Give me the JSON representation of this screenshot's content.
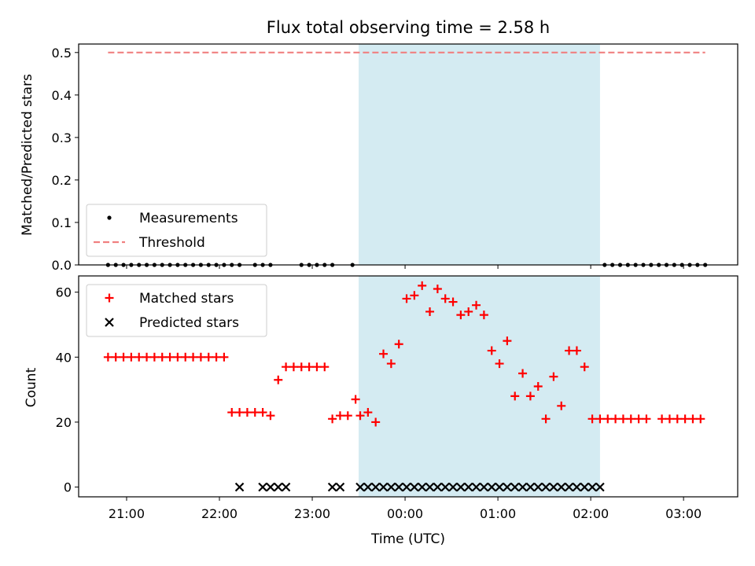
{
  "chart_data": {
    "type": "scatter",
    "title": "Flux total observing time = 2.58 h",
    "xlabel": "Time (UTC)",
    "x_ticks": [
      "21:00",
      "22:00",
      "23:00",
      "00:00",
      "01:00",
      "02:00",
      "03:00"
    ],
    "shaded_interval": {
      "start": "23:30",
      "end": "02:06",
      "color": "#add8e6"
    },
    "panels": [
      {
        "ylabel": "Matched/Predicted stars",
        "ylim": [
          0,
          0.52
        ],
        "y_ticks": [
          "0.0",
          "0.1",
          "0.2",
          "0.3",
          "0.4",
          "0.5"
        ],
        "legend_position": "lower left",
        "series": [
          {
            "name": "Measurements",
            "marker": "dot",
            "color": "#000000",
            "x": [
              "20:48",
              "20:53",
              "20:58",
              "21:03",
              "21:08",
              "21:13",
              "21:18",
              "21:23",
              "21:28",
              "21:33",
              "21:38",
              "21:43",
              "21:48",
              "21:53",
              "21:58",
              "22:03",
              "22:08",
              "22:13",
              "22:23",
              "22:28",
              "22:33",
              "22:53",
              "22:58",
              "23:03",
              "23:08",
              "23:13",
              "23:26",
              "02:09",
              "02:14",
              "02:19",
              "02:24",
              "02:29",
              "02:34",
              "02:39",
              "02:44",
              "02:49",
              "02:54",
              "02:59",
              "03:04",
              "03:09",
              "03:14"
            ],
            "y": [
              0,
              0,
              0,
              0,
              0,
              0,
              0,
              0,
              0,
              0,
              0,
              0,
              0,
              0,
              0,
              0,
              0,
              0,
              0,
              0,
              0,
              0,
              0,
              0,
              0,
              0,
              0,
              0,
              0,
              0,
              0,
              0,
              0,
              0,
              0,
              0,
              0,
              0,
              0,
              0,
              0
            ]
          },
          {
            "name": "Threshold",
            "marker": "dashed-line",
            "color": "#f08080",
            "x": [
              "20:48",
              "03:14"
            ],
            "y": [
              0.5,
              0.5
            ]
          }
        ]
      },
      {
        "ylabel": "Count",
        "ylim": [
          -3,
          65
        ],
        "y_ticks": [
          "0",
          "20",
          "40",
          "60"
        ],
        "legend_position": "upper left",
        "series": [
          {
            "name": "Matched stars",
            "marker": "plus",
            "color": "#ff0000",
            "x": [
              "20:48",
              "20:53",
              "20:58",
              "21:03",
              "21:08",
              "21:13",
              "21:18",
              "21:23",
              "21:28",
              "21:33",
              "21:38",
              "21:43",
              "21:48",
              "21:53",
              "21:58",
              "22:03",
              "22:08",
              "22:13",
              "22:18",
              "22:23",
              "22:28",
              "22:33",
              "22:38",
              "22:43",
              "22:48",
              "22:53",
              "22:58",
              "23:03",
              "23:08",
              "23:13",
              "23:18",
              "23:23",
              "23:28",
              "23:31",
              "23:36",
              "23:41",
              "23:46",
              "23:51",
              "23:56",
              "00:01",
              "00:06",
              "00:11",
              "00:16",
              "00:21",
              "00:26",
              "00:31",
              "00:36",
              "00:41",
              "00:46",
              "00:51",
              "00:56",
              "01:01",
              "01:06",
              "01:11",
              "01:16",
              "01:21",
              "01:26",
              "01:31",
              "01:36",
              "01:41",
              "01:46",
              "01:51",
              "01:56",
              "02:01",
              "02:06",
              "02:11",
              "02:16",
              "02:21",
              "02:26",
              "02:31",
              "02:36",
              "02:46",
              "02:51",
              "02:56",
              "03:01",
              "03:06",
              "03:11"
            ],
            "y": [
              40,
              40,
              40,
              40,
              40,
              40,
              40,
              40,
              40,
              40,
              40,
              40,
              40,
              40,
              40,
              40,
              23,
              23,
              23,
              23,
              23,
              22,
              33,
              37,
              37,
              37,
              37,
              37,
              37,
              21,
              22,
              22,
              27,
              22,
              23,
              20,
              41,
              38,
              44,
              58,
              59,
              62,
              54,
              61,
              58,
              57,
              53,
              54,
              56,
              53,
              42,
              38,
              45,
              28,
              35,
              28,
              31,
              21,
              34,
              25,
              42,
              42,
              37,
              21,
              21,
              21,
              21,
              21,
              21,
              21,
              21,
              21,
              21,
              21,
              21,
              21,
              21
            ]
          },
          {
            "name": "Predicted stars",
            "marker": "x",
            "color": "#000000",
            "x": [
              "22:13",
              "22:28",
              "22:33",
              "22:38",
              "22:43",
              "23:13",
              "23:18",
              "23:31",
              "23:36",
              "23:41",
              "23:46",
              "23:51",
              "23:56",
              "00:01",
              "00:06",
              "00:11",
              "00:16",
              "00:21",
              "00:26",
              "00:31",
              "00:36",
              "00:41",
              "00:46",
              "00:51",
              "00:56",
              "01:01",
              "01:06",
              "01:11",
              "01:16",
              "01:21",
              "01:26",
              "01:31",
              "01:36",
              "01:41",
              "01:46",
              "01:51",
              "01:56",
              "02:01",
              "02:06"
            ],
            "y": [
              0,
              0,
              0,
              0,
              0,
              0,
              0,
              0,
              0,
              0,
              0,
              0,
              0,
              0,
              0,
              0,
              0,
              0,
              0,
              0,
              0,
              0,
              0,
              0,
              0,
              0,
              0,
              0,
              0,
              0,
              0,
              0,
              0,
              0,
              0,
              0,
              0,
              0,
              0
            ]
          }
        ]
      }
    ]
  }
}
